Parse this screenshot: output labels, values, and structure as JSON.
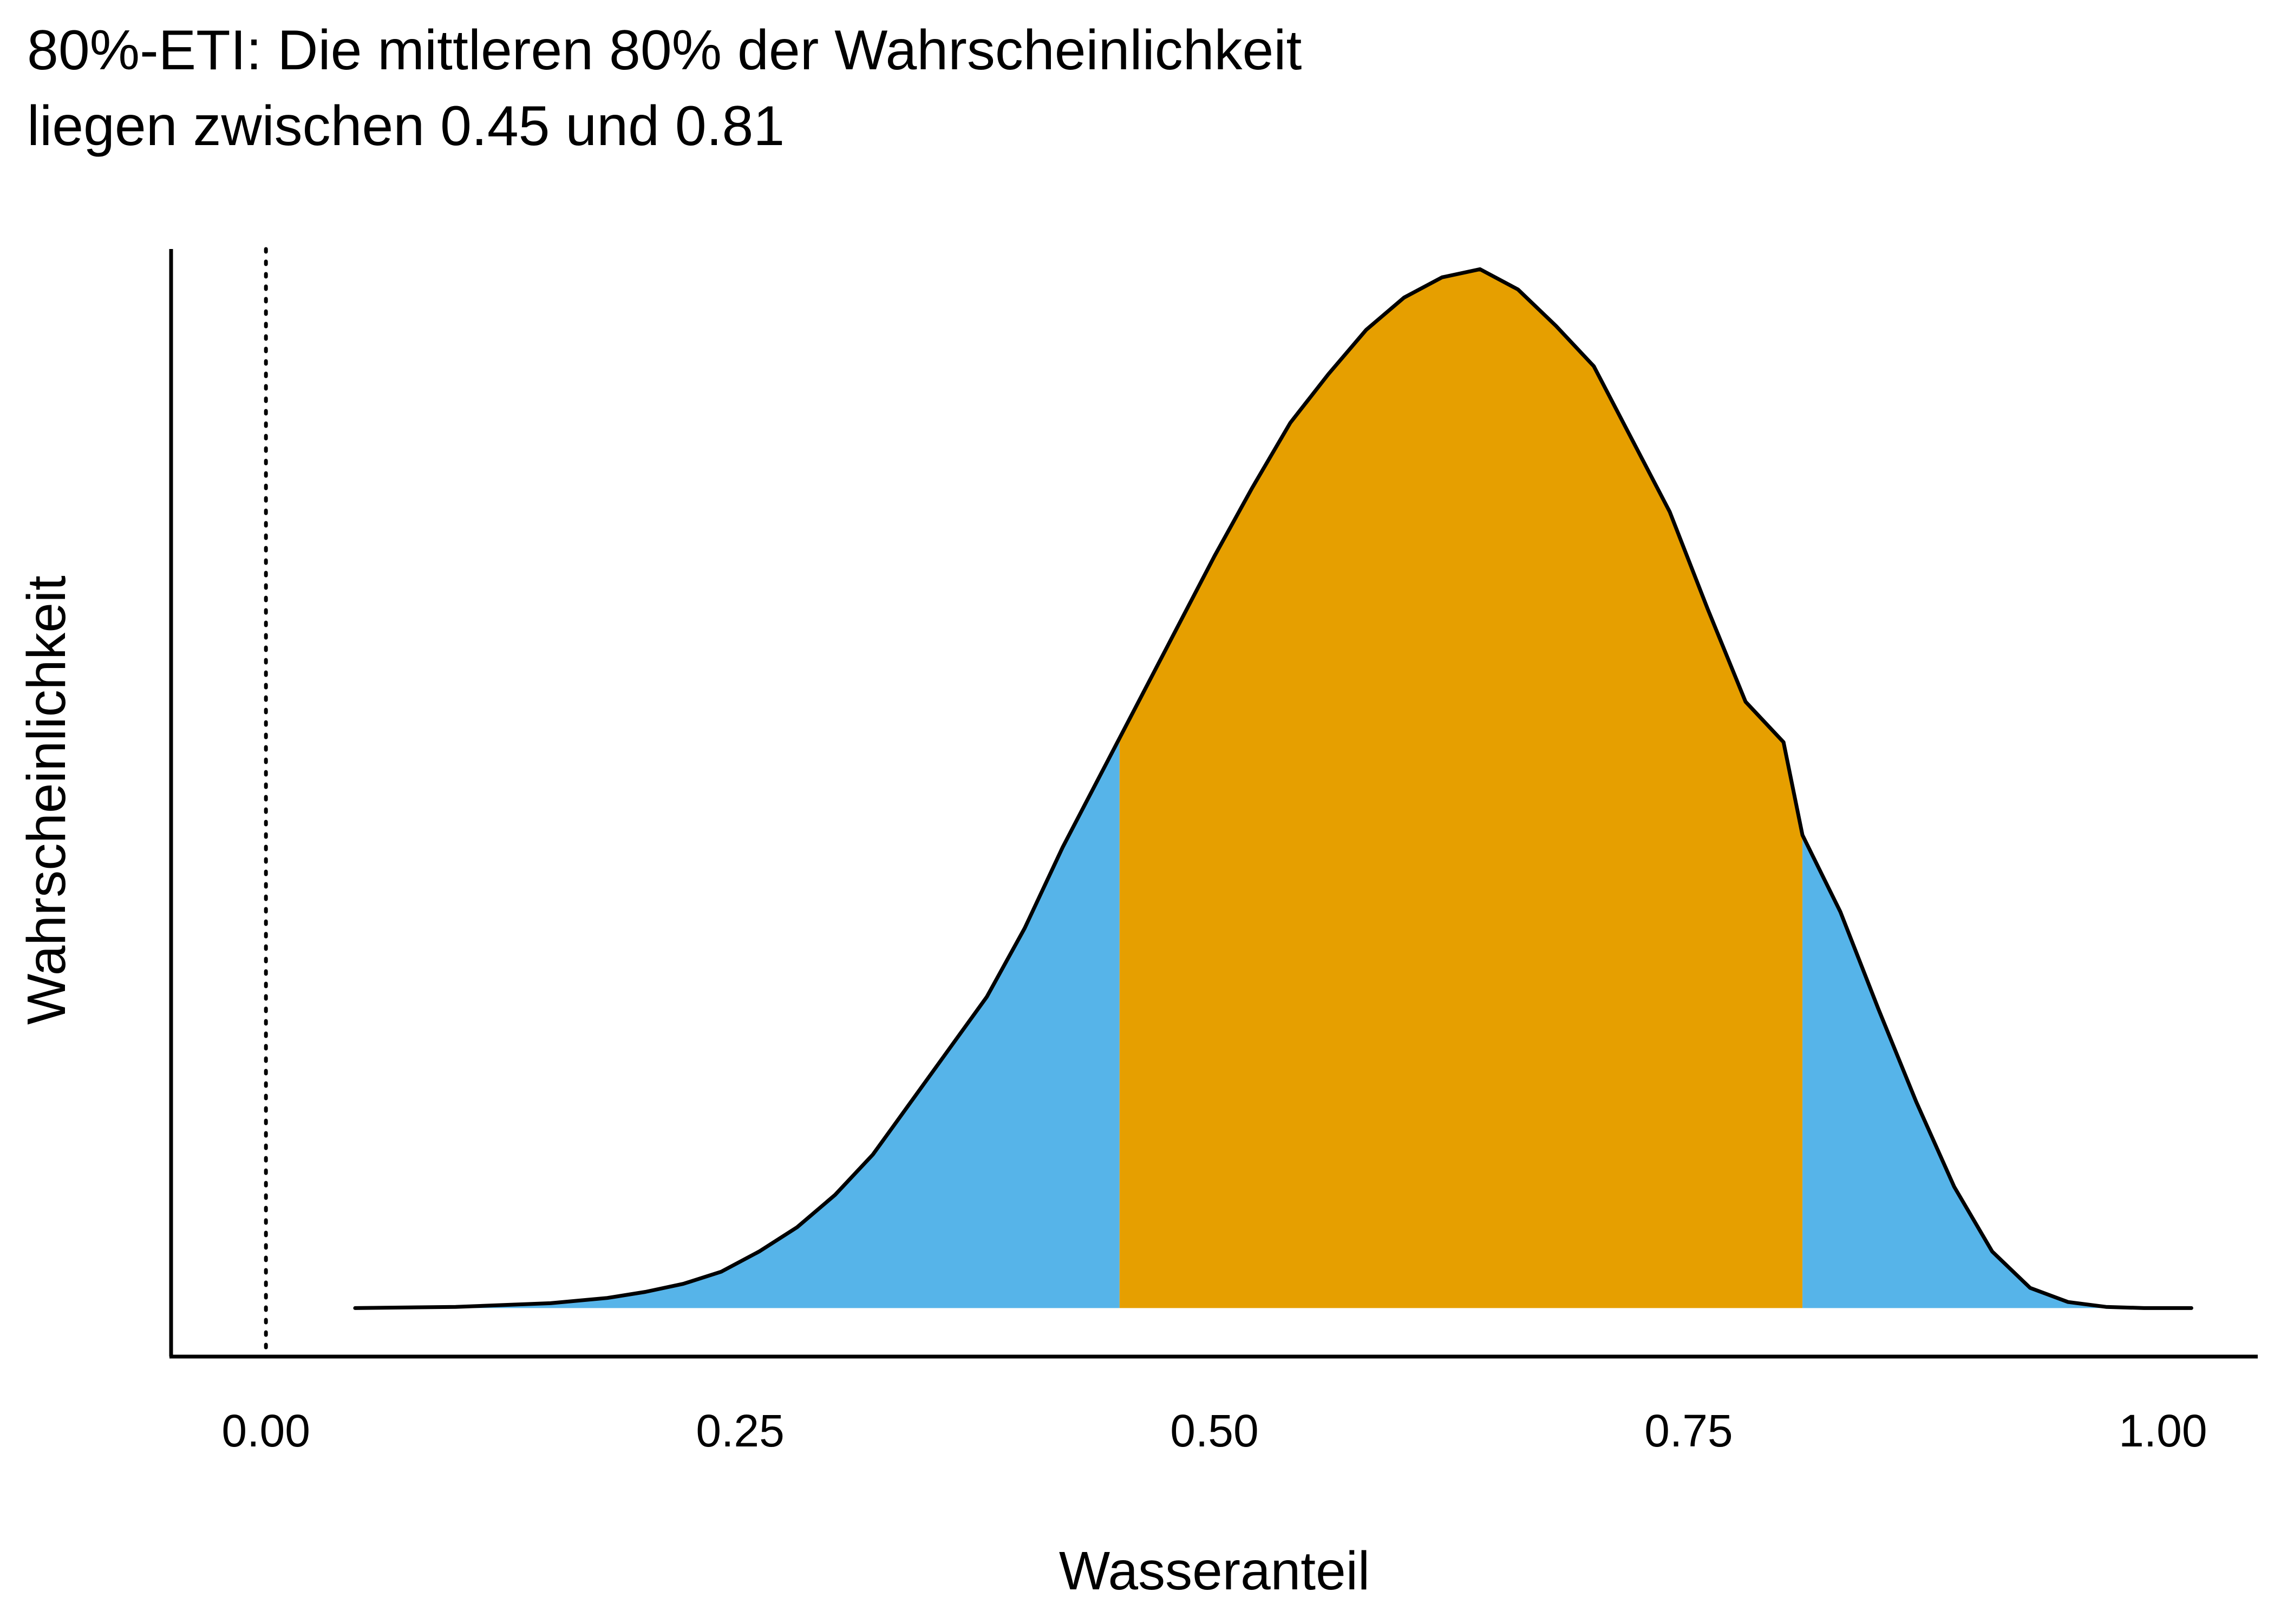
{
  "chart_data": {
    "type": "area",
    "title_lines": [
      "80%-ETI: Die mittleren 80% der Wahrscheinlichkeit",
      "liegen zwischen 0.45 und 0.81"
    ],
    "xlabel": "Wasseranteil",
    "ylabel": "Wahrscheinlichkeit",
    "xlim": [
      -0.05,
      1.05
    ],
    "ylim": [
      -0.12,
      2.62
    ],
    "x_ticks": [
      0.0,
      0.25,
      0.5,
      0.75,
      1.0
    ],
    "x_tick_labels": [
      "0.00",
      "0.25",
      "0.50",
      "0.75",
      "1.00"
    ],
    "reference_line": {
      "x": 0.0,
      "style": "dotted"
    },
    "interval": {
      "label": "80%-ETI",
      "lower": 0.45,
      "upper": 0.81
    },
    "colors": {
      "interval_fill": "#E69F00",
      "tail_fill": "#56B4E9",
      "outline": "#000000"
    },
    "density": {
      "x": [
        0.047,
        0.1,
        0.15,
        0.18,
        0.2,
        0.22,
        0.24,
        0.26,
        0.28,
        0.3,
        0.32,
        0.34,
        0.36,
        0.38,
        0.4,
        0.42,
        0.45,
        0.48,
        0.5,
        0.52,
        0.54,
        0.56,
        0.58,
        0.6,
        0.62,
        0.64,
        0.66,
        0.68,
        0.7,
        0.72,
        0.74,
        0.76,
        0.78,
        0.8,
        0.81,
        0.83,
        0.85,
        0.87,
        0.89,
        0.91,
        0.93,
        0.95,
        0.97,
        0.99,
        1.015
      ],
      "y": [
        0.0,
        0.003,
        0.012,
        0.025,
        0.04,
        0.06,
        0.09,
        0.14,
        0.2,
        0.28,
        0.38,
        0.51,
        0.64,
        0.77,
        0.94,
        1.14,
        1.41,
        1.68,
        1.86,
        2.03,
        2.19,
        2.31,
        2.42,
        2.5,
        2.55,
        2.57,
        2.52,
        2.43,
        2.33,
        2.15,
        1.97,
        1.73,
        1.5,
        1.4,
        1.17,
        0.98,
        0.74,
        0.51,
        0.3,
        0.14,
        0.05,
        0.015,
        0.003,
        0.0,
        0.0
      ]
    }
  }
}
